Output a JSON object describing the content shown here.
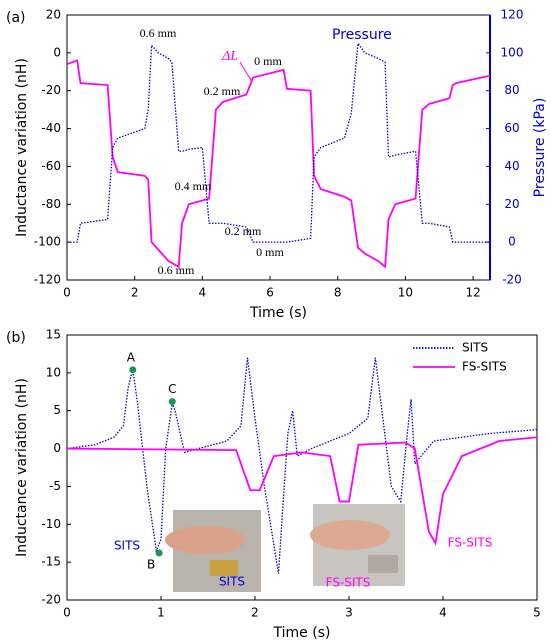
{
  "chart_data": [
    {
      "type": "line",
      "panel_label": "(a)",
      "x_label": "Time (s)",
      "y_label": "Inductance variation (nH)",
      "y2_label": "Pressure (kPa)",
      "xlim": [
        0,
        12.5
      ],
      "xticks": [
        0,
        2,
        4,
        6,
        8,
        10,
        12
      ],
      "ylim": [
        -120,
        20
      ],
      "yticks": [
        -120,
        -100,
        -80,
        -60,
        -40,
        -20,
        0,
        20
      ],
      "y2lim": [
        -20,
        120
      ],
      "y2ticks": [
        -20,
        0,
        20,
        40,
        60,
        80,
        100,
        120
      ],
      "x": [
        0,
        0.3,
        0.4,
        1.2,
        1.35,
        1.5,
        2.3,
        2.4,
        2.5,
        2.7,
        3.0,
        3.1,
        3.3,
        3.4,
        3.6,
        4.0,
        4.2,
        4.4,
        4.6,
        5.3,
        5.5,
        6.4,
        6.5,
        7.2,
        7.3,
        7.5,
        8.2,
        8.4,
        8.6,
        8.8,
        9.2,
        9.4,
        9.5,
        9.7,
        10.3,
        10.5,
        10.7,
        11.3,
        11.4,
        11.5,
        12.5
      ],
      "series": [
        {
          "name": "ΔL",
          "color": "#ff00ff",
          "style": "solid",
          "values": [
            -6,
            -4,
            -16,
            -17,
            -55,
            -63,
            -65,
            -67,
            -100,
            -104,
            -110,
            -111,
            -113,
            -90,
            -80,
            -78,
            -77,
            -30,
            -26,
            -22,
            -13,
            -9,
            -19,
            -20,
            -65,
            -72,
            -76,
            -78,
            -103,
            -106,
            -110,
            -113,
            -88,
            -80,
            -77,
            -30,
            -27,
            -24,
            -17,
            -16,
            -12
          ]
        },
        {
          "name": "Pressure",
          "color": "#0000cc",
          "style": "dotted",
          "axis": "y2",
          "values": [
            0,
            0,
            10,
            12,
            50,
            55,
            60,
            70,
            104,
            100,
            97,
            95,
            48,
            48,
            49,
            50,
            10,
            10,
            10,
            8,
            0,
            0,
            0,
            2,
            45,
            50,
            55,
            68,
            105,
            100,
            97,
            95,
            45,
            46,
            48,
            10,
            10,
            8,
            0,
            0,
            0
          ]
        }
      ],
      "annotations": [
        "0.6 mm",
        "0 mm",
        "0.2 mm",
        "0.4 mm",
        "0.2 mm",
        "0 mm",
        "0.6 mm"
      ]
    },
    {
      "type": "line",
      "panel_label": "(b)",
      "x_label": "Time (s)",
      "y_label": "Inductance variation (nH)",
      "xlim": [
        0,
        5
      ],
      "xticks": [
        0,
        1,
        2,
        3,
        4,
        5
      ],
      "ylim": [
        -20,
        15
      ],
      "yticks": [
        -20,
        -15,
        -10,
        -5,
        0,
        5,
        10,
        15
      ],
      "series": [
        {
          "name": "SITS",
          "color": "#0000cc",
          "style": "dotted",
          "x": [
            0,
            0.3,
            0.5,
            0.6,
            0.65,
            0.7,
            0.75,
            0.85,
            0.95,
            1.0,
            1.05,
            1.12,
            1.15,
            1.25,
            1.4,
            1.7,
            1.85,
            1.92,
            2.0,
            2.1,
            2.25,
            2.3,
            2.35,
            2.4,
            2.45,
            2.6,
            3.0,
            3.2,
            3.28,
            3.35,
            3.45,
            3.55,
            3.62,
            3.66,
            3.7,
            3.9,
            4.5,
            5.0
          ],
          "values": [
            0,
            0.5,
            1.5,
            3,
            8,
            10.5,
            6,
            -5,
            -13.5,
            -12,
            0,
            6,
            5,
            -0.5,
            0,
            1,
            3,
            12,
            4,
            -5,
            -16.5,
            -7,
            2,
            5,
            -1,
            0,
            2,
            4,
            12,
            5,
            -5,
            -7,
            2,
            6.5,
            -2,
            1,
            2,
            2.5
          ]
        },
        {
          "name": "FS-SITS",
          "color": "#ff00ff",
          "style": "solid",
          "x": [
            0,
            1.8,
            1.95,
            2.05,
            2.2,
            2.5,
            2.8,
            2.9,
            3.0,
            3.1,
            3.6,
            3.7,
            3.85,
            3.92,
            4.0,
            4.2,
            4.6,
            5.0
          ],
          "values": [
            0,
            -0.2,
            -5.5,
            -5.5,
            -1,
            -0.5,
            -1,
            -7,
            -7,
            0.5,
            0.8,
            0,
            -11,
            -12.5,
            -6,
            -1,
            1,
            1.5
          ]
        }
      ],
      "points": [
        {
          "label": "A",
          "x": 0.7,
          "y": 10.4,
          "color": "#1a9850"
        },
        {
          "label": "B",
          "x": 0.98,
          "y": -13.8,
          "color": "#1a9850"
        },
        {
          "label": "C",
          "x": 1.12,
          "y": 6.2,
          "color": "#1a9850"
        }
      ],
      "annotations": [
        {
          "text": "SITS",
          "color": "#0000cc"
        },
        {
          "text": "FS-SITS",
          "color": "#ff00ff"
        },
        {
          "text": "SITS",
          "color": "#0000cc"
        },
        {
          "text": "FS-SITS",
          "color": "#ff00ff"
        }
      ]
    }
  ]
}
